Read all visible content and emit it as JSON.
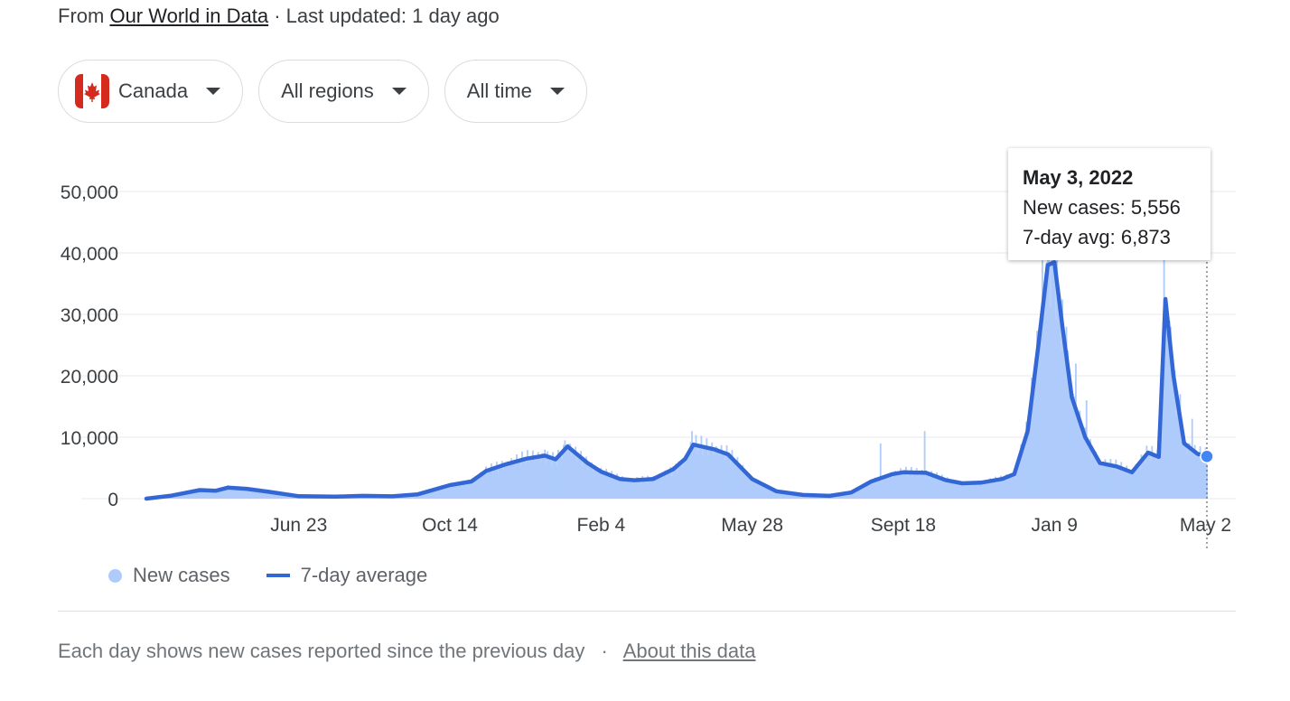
{
  "source": {
    "prefix": "From",
    "link": "Our World in Data",
    "updated": "· Last updated: 1 day ago"
  },
  "filters": [
    {
      "label": "Canada",
      "icon": "canada-flag-icon"
    },
    {
      "label": "All regions",
      "icon": "chevron-down-icon"
    },
    {
      "label": "All time",
      "icon": "chevron-down-icon"
    }
  ],
  "tooltip": {
    "date": "May 3, 2022",
    "new_cases": "New cases: 5,556",
    "avg": "7-day avg: 6,873"
  },
  "legend": {
    "new_cases": "New cases",
    "avg": "7-day average"
  },
  "footer": {
    "text": "Each day shows new cases reported since the previous day",
    "separator": "·",
    "link": "About this data"
  },
  "colors": {
    "bars": "#aecbfa",
    "area": "#aecbfa",
    "line": "#3367d6",
    "grid": "#e8eaed",
    "marker": "#4285f4"
  },
  "chart_data": {
    "type": "area",
    "y_ticks": [
      0,
      10000,
      20000,
      30000,
      40000,
      50000
    ],
    "y_tick_labels": [
      "0",
      "10,000",
      "20,000",
      "30,000",
      "40,000",
      "50,000"
    ],
    "ylim": [
      0,
      50000
    ],
    "x_tick_labels": [
      {
        "label": "Jun 23",
        "date": "2020-06-23"
      },
      {
        "label": "Oct 14",
        "date": "2020-10-14"
      },
      {
        "label": "Feb 4",
        "date": "2021-02-04"
      },
      {
        "label": "May 28",
        "date": "2021-05-28"
      },
      {
        "label": "Sept 18",
        "date": "2021-09-18"
      },
      {
        "label": "Jan 9",
        "date": "2022-01-09"
      },
      {
        "label": "May 2",
        "date": "2022-05-02"
      }
    ],
    "series": [
      {
        "name": "7-day average",
        "points": [
          [
            "2020-03-01",
            0
          ],
          [
            "2020-03-20",
            500
          ],
          [
            "2020-04-10",
            1400
          ],
          [
            "2020-04-22",
            1300
          ],
          [
            "2020-05-01",
            1800
          ],
          [
            "2020-05-15",
            1600
          ],
          [
            "2020-06-01",
            1100
          ],
          [
            "2020-06-23",
            400
          ],
          [
            "2020-07-20",
            320
          ],
          [
            "2020-08-10",
            450
          ],
          [
            "2020-09-01",
            380
          ],
          [
            "2020-09-20",
            700
          ],
          [
            "2020-10-14",
            2200
          ],
          [
            "2020-10-30",
            2800
          ],
          [
            "2020-11-10",
            4500
          ],
          [
            "2020-11-25",
            5600
          ],
          [
            "2020-12-10",
            6500
          ],
          [
            "2020-12-24",
            7000
          ],
          [
            "2021-01-01",
            6400
          ],
          [
            "2021-01-10",
            8500
          ],
          [
            "2021-01-25",
            5800
          ],
          [
            "2021-02-04",
            4400
          ],
          [
            "2021-02-18",
            3200
          ],
          [
            "2021-03-01",
            3000
          ],
          [
            "2021-03-15",
            3200
          ],
          [
            "2021-03-30",
            4800
          ],
          [
            "2021-04-08",
            6500
          ],
          [
            "2021-04-14",
            8800
          ],
          [
            "2021-04-30",
            8000
          ],
          [
            "2021-05-10",
            7200
          ],
          [
            "2021-05-28",
            3200
          ],
          [
            "2021-06-15",
            1200
          ],
          [
            "2021-07-05",
            600
          ],
          [
            "2021-07-25",
            450
          ],
          [
            "2021-08-10",
            1000
          ],
          [
            "2021-08-25",
            2800
          ],
          [
            "2021-09-10",
            4000
          ],
          [
            "2021-09-18",
            4300
          ],
          [
            "2021-10-05",
            4200
          ],
          [
            "2021-10-20",
            3000
          ],
          [
            "2021-11-01",
            2500
          ],
          [
            "2021-11-15",
            2600
          ],
          [
            "2021-12-01",
            3200
          ],
          [
            "2021-12-10",
            4000
          ],
          [
            "2021-12-20",
            11000
          ],
          [
            "2021-12-28",
            25000
          ],
          [
            "2022-01-04",
            38000
          ],
          [
            "2022-01-09",
            38500
          ],
          [
            "2022-01-15",
            28000
          ],
          [
            "2022-01-22",
            16500
          ],
          [
            "2022-02-01",
            10000
          ],
          [
            "2022-02-12",
            5800
          ],
          [
            "2022-02-25",
            5200
          ],
          [
            "2022-03-08",
            4300
          ],
          [
            "2022-03-20",
            7500
          ],
          [
            "2022-03-28",
            6800
          ],
          [
            "2022-04-02",
            32500
          ],
          [
            "2022-04-08",
            20000
          ],
          [
            "2022-04-16",
            9000
          ],
          [
            "2022-04-26",
            7300
          ],
          [
            "2022-05-03",
            6873
          ]
        ]
      },
      {
        "name": "New cases",
        "points": [
          [
            "2020-12-24",
            8000
          ],
          [
            "2021-01-08",
            9500
          ],
          [
            "2021-04-13",
            11000
          ],
          [
            "2021-09-01",
            9000
          ],
          [
            "2021-10-04",
            11000
          ],
          [
            "2021-12-31",
            40000
          ],
          [
            "2022-01-07",
            42000
          ],
          [
            "2022-01-18",
            28000
          ],
          [
            "2022-01-25",
            22000
          ],
          [
            "2022-02-02",
            16000
          ],
          [
            "2022-04-01",
            40000
          ],
          [
            "2022-04-06",
            28000
          ],
          [
            "2022-04-13",
            17000
          ],
          [
            "2022-04-22",
            13000
          ],
          [
            "2022-05-03",
            5556
          ]
        ]
      }
    ],
    "highlight": {
      "date": "2022-05-03",
      "new_cases": 5556,
      "avg": 6873
    },
    "grid": true,
    "legend_position": "bottom-left"
  }
}
